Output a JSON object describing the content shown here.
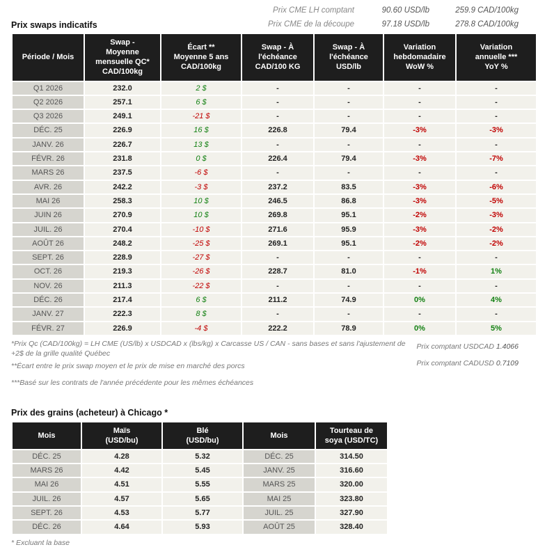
{
  "top_quotes": {
    "rows": [
      {
        "label": "Prix CME LH comptant",
        "usd": "90.60 USD/lb",
        "cad": "259.9 CAD/100kg"
      },
      {
        "label": "Prix CME de la découpe",
        "usd": "97.18 USD/lb",
        "cad": "278.8 CAD/100kg"
      }
    ]
  },
  "swaps_table": {
    "title": "Prix swaps indicatifs",
    "headers": [
      "Période / Mois",
      "Swap -\nMoyenne\nmensuelle QC*\nCAD/100kg",
      "Écart **\nMoyenne 5 ans\nCAD/100kg",
      "Swap - À\nl'échéance\nCAD/100 KG",
      "Swap - À\nl'échéance\nUSD/lb",
      "Variation\nhebdomadaire\nWoW %",
      "Variation\nannuelle ***\nYoY %"
    ],
    "rows": [
      [
        "Q1 2026",
        "232.0",
        "2 $",
        "-",
        "-",
        "-",
        "-"
      ],
      [
        "Q2 2026",
        "257.1",
        "6 $",
        "-",
        "-",
        "-",
        "-"
      ],
      [
        "Q3 2026",
        "249.1",
        "-21 $",
        "-",
        "-",
        "-",
        "-"
      ],
      [
        "DÉC. 25",
        "226.9",
        "16 $",
        "226.8",
        "79.4",
        "-3%",
        "-3%"
      ],
      [
        "JANV. 26",
        "226.7",
        "13 $",
        "-",
        "-",
        "-",
        "-"
      ],
      [
        "FÉVR. 26",
        "231.8",
        "0 $",
        "226.4",
        "79.4",
        "-3%",
        "-7%"
      ],
      [
        "MARS 26",
        "237.5",
        "-6 $",
        "-",
        "-",
        "-",
        "-"
      ],
      [
        "AVR. 26",
        "242.2",
        "-3 $",
        "237.2",
        "83.5",
        "-3%",
        "-6%"
      ],
      [
        "MAI 26",
        "258.3",
        "10 $",
        "246.5",
        "86.8",
        "-3%",
        "-5%"
      ],
      [
        "JUIN 26",
        "270.9",
        "10 $",
        "269.8",
        "95.1",
        "-2%",
        "-3%"
      ],
      [
        "JUIL. 26",
        "270.4",
        "-10 $",
        "271.6",
        "95.9",
        "-3%",
        "-2%"
      ],
      [
        "AOÛT 26",
        "248.2",
        "-25 $",
        "269.1",
        "95.1",
        "-2%",
        "-2%"
      ],
      [
        "SEPT. 26",
        "228.9",
        "-27 $",
        "-",
        "-",
        "-",
        "-"
      ],
      [
        "OCT. 26",
        "219.3",
        "-26 $",
        "228.7",
        "81.0",
        "-1%",
        "1%"
      ],
      [
        "NOV. 26",
        "211.3",
        "-22 $",
        "-",
        "-",
        "-",
        "-"
      ],
      [
        "DÉC. 26",
        "217.4",
        "6 $",
        "211.2",
        "74.9",
        "0%",
        "4%"
      ],
      [
        "JANV. 27",
        "222.3",
        "8 $",
        "-",
        "-",
        "-",
        "-"
      ],
      [
        "FÉVR. 27",
        "226.9",
        "-4 $",
        "222.2",
        "78.9",
        "0%",
        "5%"
      ]
    ]
  },
  "footnotes": {
    "left": [
      "*Prix Qc (CAD/100kg) = LH CME (US/lb) x USDCAD x (lbs/kg) x Carcasse US / CAN - sans bases et sans l'ajustement de +2$ de la grille qualité Québec",
      "**Écart entre le prix swap moyen et le prix de mise en marché des porcs",
      "***Basé sur les contrats de l'année précédente pour les mêmes échéances"
    ],
    "right": [
      {
        "label": "Prix comptant USDCAD",
        "value": "1.4066"
      },
      {
        "label": "Prix comptant CADUSD",
        "value": "0.7109"
      }
    ]
  },
  "grain_table": {
    "title": "Prix des grains (acheteur) à Chicago *",
    "headers": [
      "Mois",
      "Maïs\n(USD/bu)",
      "Blé\n(USD/bu)",
      "Mois",
      "Tourteau de\nsoya (USD/TC)"
    ],
    "rows": [
      [
        "DÉC. 25",
        "4.28",
        "5.32",
        "DÉC. 25",
        "314.50"
      ],
      [
        "MARS 26",
        "4.42",
        "5.45",
        "JANV. 25",
        "316.60"
      ],
      [
        "MAI 26",
        "4.51",
        "5.55",
        "MARS 25",
        "320.00"
      ],
      [
        "JUIL. 26",
        "4.57",
        "5.65",
        "MAI 25",
        "323.80"
      ],
      [
        "SEPT. 26",
        "4.53",
        "5.77",
        "JUIL. 25",
        "327.90"
      ],
      [
        "DÉC. 26",
        "4.64",
        "5.93",
        "AOÛT 25",
        "328.40"
      ]
    ],
    "footnote": "* Excluant la base"
  },
  "colors": {
    "positive": "#128012",
    "negative": "#c00000",
    "header_bg": "#1e1e1e",
    "month_bg": "#d6d5cf",
    "value_bg": "#f2f1eb"
  }
}
